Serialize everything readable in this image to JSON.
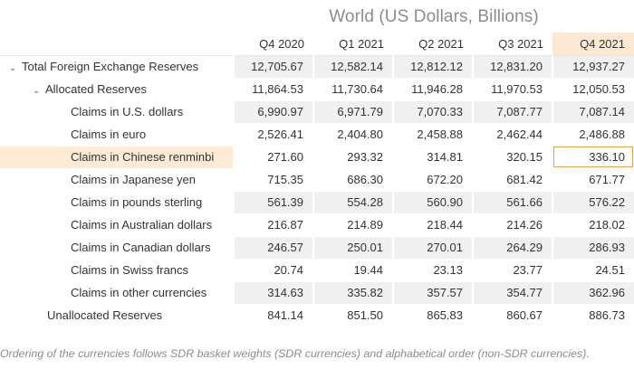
{
  "title": "World (US Dollars, Billions)",
  "columns": [
    "Q4 2020",
    "Q1 2021",
    "Q2 2021",
    "Q3 2021",
    "Q4 2021"
  ],
  "rows": [
    {
      "label": "Total Foreign Exchange Reserves",
      "expander": "chevron-down",
      "values": [
        "12,705.67",
        "12,582.14",
        "12,812.12",
        "12,831.20",
        "12,937.27"
      ]
    },
    {
      "label": "Allocated Reserves",
      "expander": "chevron-down",
      "values": [
        "11,864.53",
        "11,730.64",
        "11,946.28",
        "11,970.53",
        "12,050.53"
      ]
    },
    {
      "label": "Claims in U.S. dollars",
      "values": [
        "6,990.97",
        "6,971.79",
        "7,070.33",
        "7,087.77",
        "7,087.14"
      ]
    },
    {
      "label": "Claims in euro",
      "values": [
        "2,526.41",
        "2,404.80",
        "2,458.88",
        "2,462.44",
        "2,486.88"
      ]
    },
    {
      "label": "Claims in Chinese renminbi",
      "values": [
        "271.60",
        "293.32",
        "314.81",
        "320.15",
        "336.10"
      ]
    },
    {
      "label": "Claims in Japanese yen",
      "values": [
        "715.35",
        "686.30",
        "672.20",
        "681.42",
        "671.77"
      ]
    },
    {
      "label": "Claims in pounds sterling",
      "values": [
        "561.39",
        "554.28",
        "560.90",
        "561.66",
        "576.22"
      ]
    },
    {
      "label": "Claims in Australian dollars",
      "values": [
        "216.87",
        "214.89",
        "218.44",
        "214.26",
        "218.02"
      ]
    },
    {
      "label": "Claims in Canadian dollars",
      "values": [
        "246.57",
        "250.01",
        "270.01",
        "264.29",
        "286.93"
      ]
    },
    {
      "label": "Claims in Swiss francs",
      "values": [
        "20.74",
        "19.44",
        "23.13",
        "23.77",
        "24.51"
      ]
    },
    {
      "label": "Claims in other currencies",
      "values": [
        "314.63",
        "335.82",
        "357.57",
        "354.77",
        "362.96"
      ]
    },
    {
      "label": "Unallocated Reserves",
      "values": [
        "841.14",
        "851.50",
        "865.83",
        "860.67",
        "886.73"
      ]
    }
  ],
  "footnote": "Ordering of the currencies follows SDR basket weights (SDR currencies) and alphabetical order (non-SDR currencies).",
  "colors": {
    "highlight": "#fde9d3",
    "focus_outline": "#e8a24a",
    "stripe": "#f0f0f0"
  }
}
